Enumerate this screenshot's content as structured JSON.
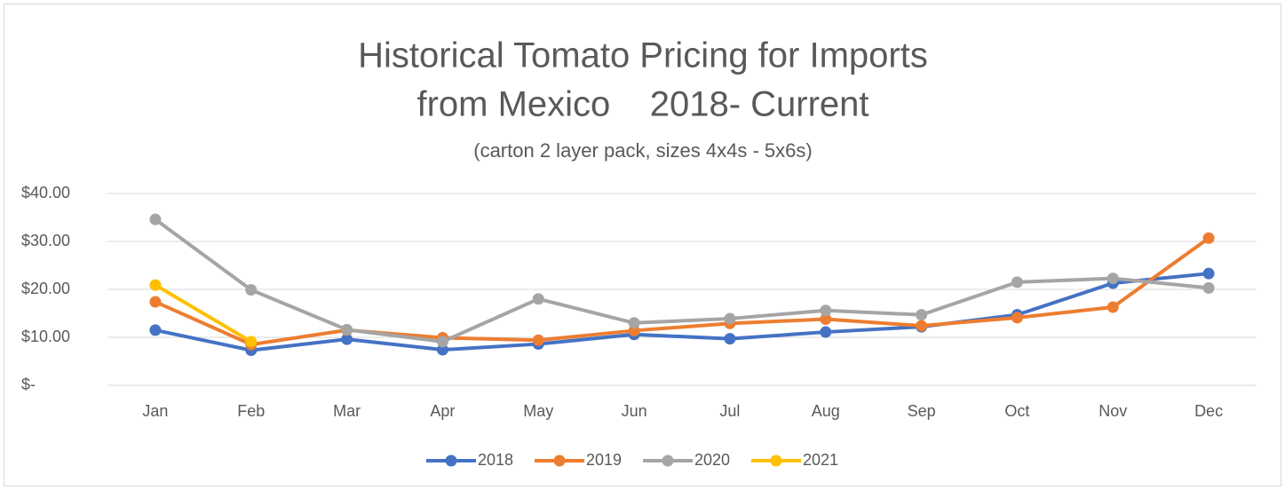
{
  "chart_data": {
    "type": "line",
    "title": [
      "Historical Tomato Pricing for Imports",
      "from Mexico    2018- Current"
    ],
    "subtitle": "(carton 2 layer pack, sizes 4x4s - 5x6s)",
    "categories": [
      "Jan",
      "Feb",
      "Mar",
      "Apr",
      "May",
      "Jun",
      "Jul",
      "Aug",
      "Sep",
      "Oct",
      "Nov",
      "Dec"
    ],
    "series": [
      {
        "name": "2018",
        "color": "#4472c4",
        "values": [
          11.5,
          7.3,
          9.6,
          7.4,
          8.6,
          10.6,
          9.7,
          11.1,
          12.2,
          14.7,
          21.3,
          23.3
        ]
      },
      {
        "name": "2019",
        "color": "#ed7d31",
        "values": [
          17.4,
          8.5,
          11.5,
          9.9,
          9.4,
          11.4,
          12.9,
          13.8,
          12.4,
          14.1,
          16.3,
          30.7
        ]
      },
      {
        "name": "2020",
        "color": "#a5a5a5",
        "values": [
          34.6,
          19.9,
          11.6,
          9.1,
          18.0,
          13.0,
          13.9,
          15.6,
          14.7,
          21.5,
          22.3,
          20.3
        ]
      },
      {
        "name": "2021",
        "color": "#ffc000",
        "values": [
          20.9,
          9.1,
          null,
          null,
          null,
          null,
          null,
          null,
          null,
          null,
          null,
          null
        ]
      }
    ],
    "ylim": [
      0,
      40
    ],
    "yticks": [
      {
        "value": 0,
        "label": "$-"
      },
      {
        "value": 10,
        "label": "$10.00"
      },
      {
        "value": 20,
        "label": "$20.00"
      },
      {
        "value": 30,
        "label": "$30.00"
      },
      {
        "value": 40,
        "label": "$40.00"
      }
    ],
    "grid": true,
    "legend": "bottom"
  }
}
